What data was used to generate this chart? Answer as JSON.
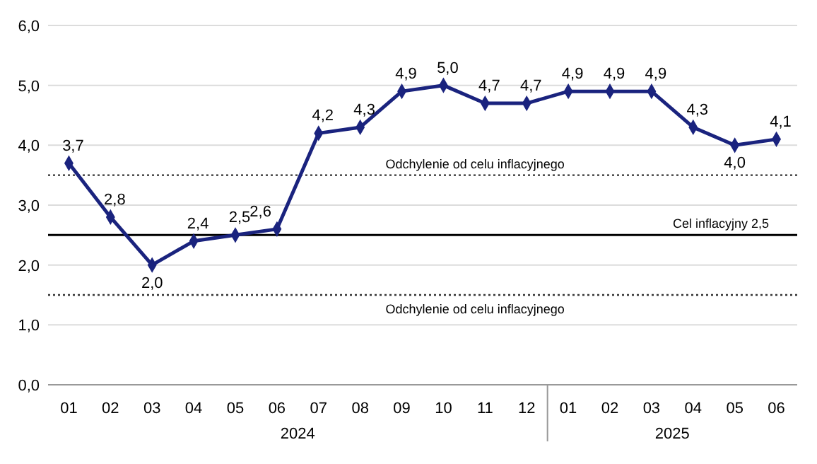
{
  "chart_data": {
    "type": "line",
    "categories": [
      "01",
      "02",
      "03",
      "04",
      "05",
      "06",
      "07",
      "08",
      "09",
      "10",
      "11",
      "12",
      "01",
      "02",
      "03",
      "04",
      "05",
      "06"
    ],
    "series": [
      {
        "color": "#1a237e",
        "values": [
          3.7,
          2.8,
          2.0,
          2.4,
          2.5,
          2.6,
          4.2,
          4.3,
          4.9,
          5.0,
          4.7,
          4.7,
          4.9,
          4.9,
          4.9,
          4.3,
          4.0,
          4.1
        ],
        "value_labels": [
          "3,7",
          "2,8",
          "2,0",
          "2,4",
          "2,5",
          "2,6",
          "4,2",
          "4,3",
          "4,9",
          "5,0",
          "4,7",
          "4,7",
          "4,9",
          "4,9",
          "4,9",
          "4,3",
          "4,0",
          "4,1"
        ]
      }
    ],
    "ylim": [
      0,
      6
    ],
    "yticks": [
      {
        "value": 0,
        "label": "0,0"
      },
      {
        "value": 1,
        "label": "1,0"
      },
      {
        "value": 2,
        "label": "2,0"
      },
      {
        "value": 3,
        "label": "3,0"
      },
      {
        "value": 4,
        "label": "4,0"
      },
      {
        "value": 5,
        "label": "5,0"
      },
      {
        "value": 6,
        "label": "6,0"
      }
    ],
    "grid": "y",
    "marker": "diamond",
    "line_style": "solid",
    "ref_lines": [
      {
        "axis": "y",
        "value": 3.5,
        "label": "Odchylenie od celu inflacyjnego",
        "color": "#333333",
        "line_style": "dotted"
      },
      {
        "axis": "y",
        "value": 2.5,
        "label": "Cel inflacyjny 2,5",
        "color": "#000000",
        "line_style": "solid"
      },
      {
        "axis": "y",
        "value": 1.5,
        "label": "Odchylenie od celu inflacyjnego",
        "color": "#333333",
        "line_style": "dotted"
      }
    ],
    "annotations": [
      "2024",
      "2025"
    ]
  }
}
